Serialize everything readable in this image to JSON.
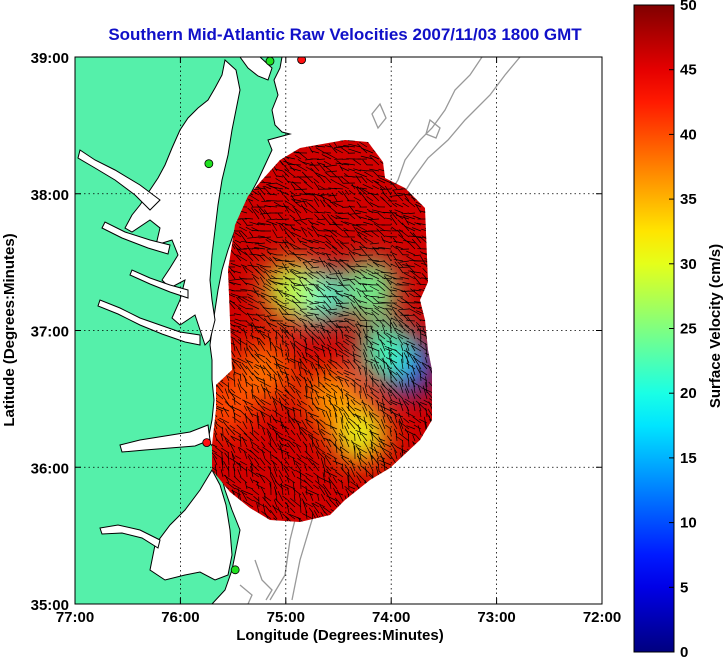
{
  "chart_data": {
    "type": "heatmap",
    "title": "Southern Mid-Atlantic Raw Velocities 2007/11/03 1800 GMT",
    "xlabel": "Longitude (Degrees:Minutes)",
    "ylabel": "Latitude (Degrees:Minutes)",
    "x_ticks": [
      {
        "value": -77,
        "label": "77:00"
      },
      {
        "value": -76,
        "label": "76:00"
      },
      {
        "value": -75,
        "label": "75:00"
      },
      {
        "value": -74,
        "label": "74:00"
      },
      {
        "value": -73,
        "label": "73:00"
      },
      {
        "value": -72,
        "label": "72:00"
      }
    ],
    "y_ticks": [
      {
        "value": 35,
        "label": "35:00"
      },
      {
        "value": 36,
        "label": "36:00"
      },
      {
        "value": 37,
        "label": "37:00"
      },
      {
        "value": 38,
        "label": "38:00"
      },
      {
        "value": 39,
        "label": "39:00"
      }
    ],
    "xlim": [
      -77,
      -72
    ],
    "ylim": [
      35,
      39
    ],
    "grid": true,
    "colorbar": {
      "label": "Surface Velocity (cm/s)",
      "range": [
        0,
        50
      ],
      "ticks": [
        {
          "value": 0,
          "label": "0"
        },
        {
          "value": 5,
          "label": "5"
        },
        {
          "value": 10,
          "label": "10"
        },
        {
          "value": 15,
          "label": "15"
        },
        {
          "value": 20,
          "label": "20"
        },
        {
          "value": 25,
          "label": "25"
        },
        {
          "value": 30,
          "label": "30"
        },
        {
          "value": 35,
          "label": "35"
        },
        {
          "value": 40,
          "label": "40"
        },
        {
          "value": 45,
          "label": "45"
        },
        {
          "value": 50,
          "label": "50"
        }
      ]
    },
    "field_hotspots": [
      {
        "lon": -73.85,
        "lat": 36.75,
        "speed": 10
      },
      {
        "lon": -74.05,
        "lat": 36.85,
        "speed": 22
      },
      {
        "lon": -74.7,
        "lat": 37.25,
        "speed": 20
      },
      {
        "lon": -74.95,
        "lat": 37.3,
        "speed": 28
      },
      {
        "lon": -74.2,
        "lat": 37.3,
        "speed": 24
      },
      {
        "lon": -74.3,
        "lat": 36.25,
        "speed": 30
      },
      {
        "lon": -74.55,
        "lat": 36.5,
        "speed": 36
      },
      {
        "lon": -75.2,
        "lat": 36.7,
        "speed": 38
      },
      {
        "lon": -75.55,
        "lat": 36.45,
        "speed": 40
      }
    ],
    "base_speed": 50,
    "colors": {
      "land": "#55f0aa",
      "water": "#ffffff",
      "coastline": "#000000",
      "bathymetry": "#999999",
      "vectors": "#000000",
      "radar_site_red": "#ff1010",
      "radar_site_green": "#20e020"
    },
    "radar_sites": [
      {
        "lon": -74.85,
        "lat": 38.98,
        "color": "red"
      },
      {
        "lon": -75.15,
        "lat": 38.97,
        "color": "green"
      },
      {
        "lon": -75.73,
        "lat": 38.22,
        "color": "green"
      },
      {
        "lon": -75.75,
        "lat": 36.18,
        "color": "red"
      },
      {
        "lon": -75.48,
        "lat": 35.25,
        "color": "green"
      }
    ]
  }
}
